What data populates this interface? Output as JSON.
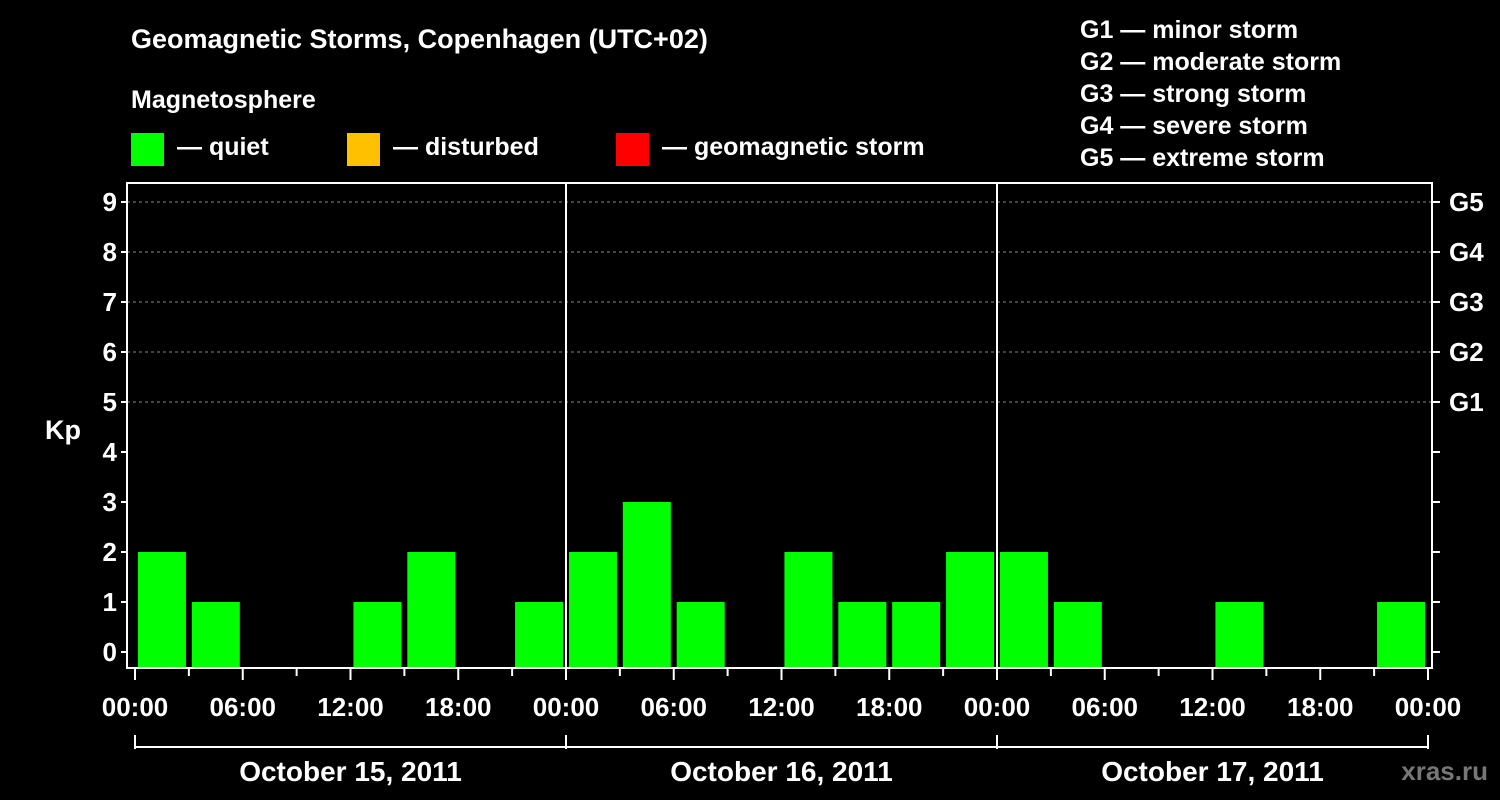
{
  "title": "Geomagnetic Storms, Copenhagen (UTC+02)",
  "subtitle": "Magnetosphere",
  "legend": [
    {
      "label": "— quiet",
      "color": "#00ff00"
    },
    {
      "label": "— disturbed",
      "color": "#ffc000"
    },
    {
      "label": "— geomagnetic storm",
      "color": "#ff0000"
    }
  ],
  "storm_scale": [
    "G1 — minor storm",
    "G2 — moderate storm",
    "G3 — strong storm",
    "G4 — severe storm",
    "G5 — extreme storm"
  ],
  "watermark": "xras.ru",
  "chart_data": {
    "type": "bar",
    "ylabel": "Kp",
    "xlabel": "",
    "ylim": [
      0,
      9
    ],
    "yticks": [
      "0",
      "1",
      "2",
      "3",
      "4",
      "5",
      "6",
      "7",
      "8",
      "9"
    ],
    "right_axis_labels": [
      {
        "kp": 5,
        "label": "G1"
      },
      {
        "kp": 6,
        "label": "G2"
      },
      {
        "kp": 7,
        "label": "G3"
      },
      {
        "kp": 8,
        "label": "G4"
      },
      {
        "kp": 9,
        "label": "G5"
      }
    ],
    "grid": true,
    "xtick_labels": [
      "00:00",
      "06:00",
      "12:00",
      "18:00",
      "00:00",
      "06:00",
      "12:00",
      "18:00",
      "00:00",
      "06:00",
      "12:00",
      "18:00",
      "00:00"
    ],
    "days": [
      "October 15, 2011",
      "October 16, 2011",
      "October 17, 2011"
    ],
    "interval_hours": 3,
    "categories": [
      "Oct 15 00:00",
      "Oct 15 03:00",
      "Oct 15 06:00",
      "Oct 15 09:00",
      "Oct 15 12:00",
      "Oct 15 15:00",
      "Oct 15 18:00",
      "Oct 15 21:00",
      "Oct 16 00:00",
      "Oct 16 03:00",
      "Oct 16 06:00",
      "Oct 16 09:00",
      "Oct 16 12:00",
      "Oct 16 15:00",
      "Oct 16 18:00",
      "Oct 16 21:00",
      "Oct 17 00:00",
      "Oct 17 03:00",
      "Oct 17 06:00",
      "Oct 17 09:00",
      "Oct 17 12:00",
      "Oct 17 15:00",
      "Oct 17 18:00",
      "Oct 17 21:00",
      "Oct 18 00:00"
    ],
    "values": [
      2,
      1,
      0,
      0,
      1,
      2,
      0,
      1,
      2,
      3,
      1,
      0,
      2,
      1,
      1,
      2,
      2,
      1,
      0,
      0,
      1,
      0,
      0,
      1,
      null
    ],
    "colors": {
      "quiet": "#00ff00",
      "disturbed": "#ffc000",
      "storm": "#ff0000"
    }
  }
}
